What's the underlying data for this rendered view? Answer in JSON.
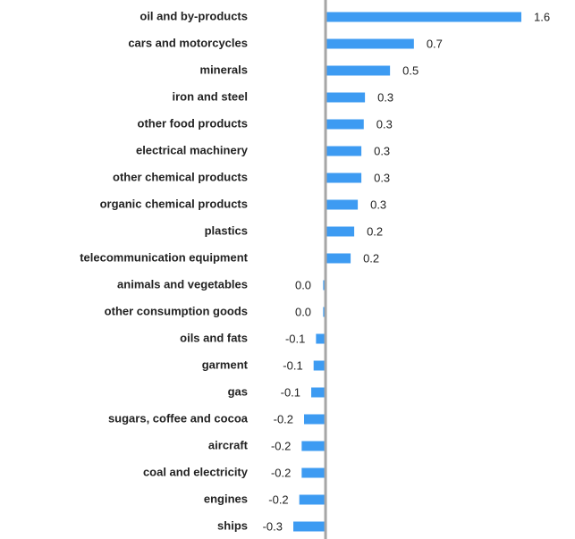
{
  "chart_data": {
    "type": "barh",
    "categories": [
      "oil and by-products",
      "cars and motorcycles",
      "minerals",
      "iron and steel",
      "other food products",
      "electrical machinery",
      "other chemical products",
      "organic chemical products",
      "plastics",
      "telecommunication equipment",
      "animals and vegetables",
      "other consumption goods",
      "oils and fats",
      "garment",
      "gas",
      "sugars, coffee and cocoa",
      "aircraft",
      "coal and electricity",
      "engines",
      "ships"
    ],
    "values": [
      1.64,
      0.74,
      0.54,
      0.33,
      0.32,
      0.3,
      0.3,
      0.27,
      0.24,
      0.21,
      -0.02,
      -0.02,
      -0.08,
      -0.1,
      -0.12,
      -0.18,
      -0.2,
      -0.2,
      -0.22,
      -0.27
    ],
    "value_labels": [
      "1.6",
      "0.7",
      "0.5",
      "0.3",
      "0.3",
      "0.3",
      "0.3",
      "0.3",
      "0.2",
      "0.2",
      "0.0",
      "0.0",
      "-0.1",
      "-0.1",
      "-0.1",
      "-0.2",
      "-0.2",
      "-0.2",
      "-0.2",
      "-0.3"
    ],
    "color": "#3d9bf2",
    "xlim": [
      -0.3,
      1.7
    ]
  }
}
